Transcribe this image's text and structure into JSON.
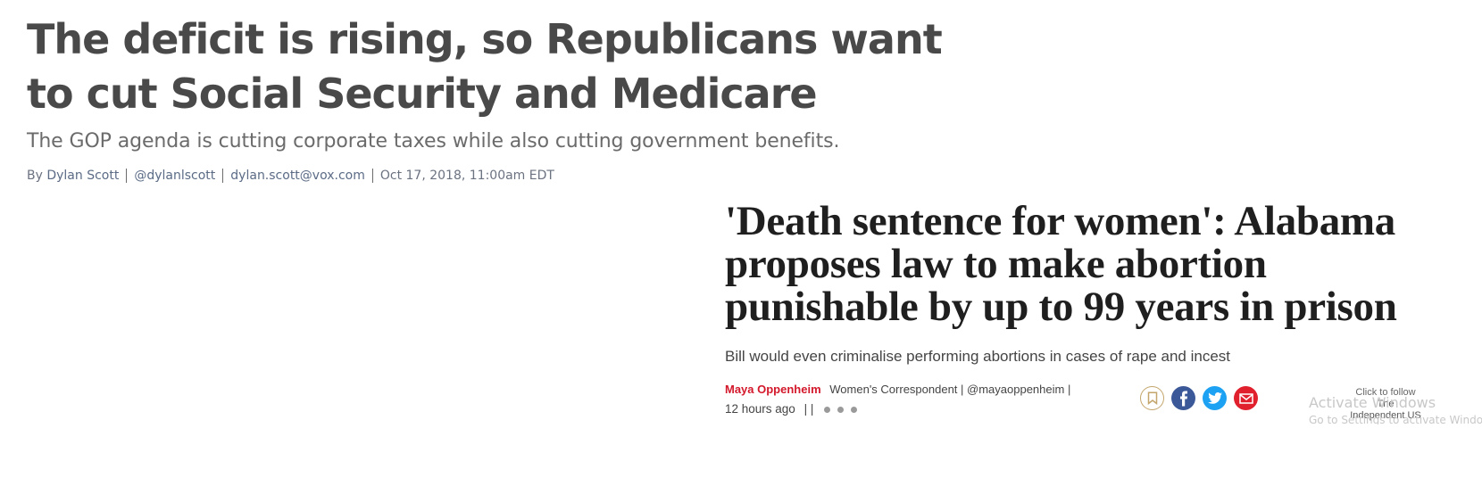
{
  "vox": {
    "headline": "The deficit is rising, so Republicans want to cut Social Security and Medicare",
    "dek": "The GOP agenda is cutting corporate taxes while also cutting government benefits.",
    "byline": {
      "prefix": "By",
      "author": "Dylan Scott",
      "handle": "@dylanlscott",
      "email": "dylan.scott@vox.com",
      "date": "Oct 17, 2018, 11:00am EDT"
    },
    "colors": {
      "headline": "#494949",
      "link": "#5b6b86"
    }
  },
  "independent": {
    "headline": "'Death sentence for women': Alabama proposes law to make abortion punishable by up to 99 years in prison",
    "dek": "Bill would even criminalise performing abortions in cases of rape and incest",
    "author_name": "Maya Oppenheim",
    "author_role": "Women's Correspondent |",
    "author_handle": "@mayaoppenheim |",
    "time_ago": "12 hours ago",
    "meta_sep": "|  |",
    "share_icons": [
      "bookmark-icon",
      "facebook-icon",
      "twitter-icon",
      "email-icon"
    ],
    "follow_line1": "Click to follow",
    "follow_line2": "The Independent US",
    "colors": {
      "author": "#d3182b",
      "facebook": "#3b5998",
      "twitter": "#1da1f2",
      "email": "#e1202e",
      "bookmark": "#c4a56b"
    }
  },
  "watermark": {
    "line1": "Activate Windows",
    "line2": "Go to Settings to activate Windows."
  }
}
